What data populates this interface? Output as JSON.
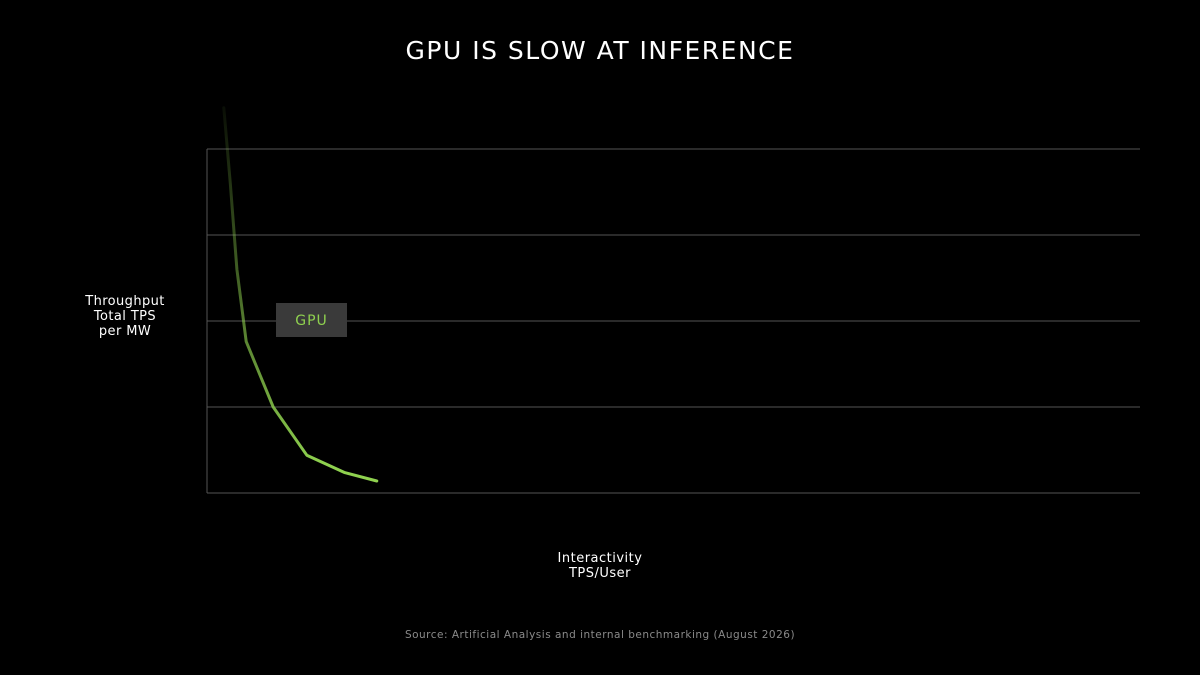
{
  "title": "GPU IS SLOW AT INFERENCE",
  "colors": {
    "background": "#000000",
    "grid": "#555555",
    "series": "#8fd14f",
    "label_box": "#3a3a3a",
    "source_text": "#8a8a8a"
  },
  "chart_data": {
    "type": "line",
    "title": "GPU IS SLOW AT INFERENCE",
    "ylabel": [
      "Throughput",
      "Total TPS",
      "per MW"
    ],
    "xlabel": [
      "Interactivity",
      "TPS/User"
    ],
    "xlim": [
      0,
      100
    ],
    "ylim": [
      0,
      100
    ],
    "grid": true,
    "gridlines_y": [
      25,
      50,
      75,
      100
    ],
    "tick_labels_shown": false,
    "series": [
      {
        "name": "GPU",
        "x": [
          1.8,
          2.5,
          3.2,
          4.2,
          7.1,
          10.7,
          14.7,
          18.2
        ],
        "y": [
          112,
          90,
          65,
          44,
          25,
          11,
          6,
          3.5
        ]
      }
    ]
  },
  "source": "Source: Artificial Analysis and internal benchmarking (August 2026)"
}
